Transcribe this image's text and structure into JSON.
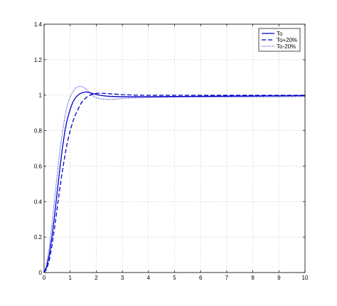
{
  "colors": {
    "series": "#0000cc",
    "grid": "#b0b0b0",
    "axis": "#000000",
    "background": "#ffffff"
  },
  "chart_data": {
    "type": "line",
    "title": "",
    "xlabel": "",
    "ylabel": "",
    "xlim": [
      0,
      10
    ],
    "ylim": [
      0,
      1.4
    ],
    "grid": true,
    "legend_position": "top-right",
    "x_ticks": [
      "0",
      "1",
      "2",
      "3",
      "4",
      "5",
      "6",
      "7",
      "8",
      "9",
      "10"
    ],
    "y_ticks": [
      "0",
      "0.2",
      "0.4",
      "0.6",
      "0.8",
      "1",
      "1.2",
      "1.4"
    ],
    "series": [
      {
        "name": "To",
        "style": "solid",
        "x": [
          0,
          0.1,
          0.2,
          0.3,
          0.4,
          0.5,
          0.6,
          0.7,
          0.8,
          0.9,
          1.0,
          1.1,
          1.2,
          1.3,
          1.4,
          1.5,
          1.6,
          1.7,
          1.8,
          1.9,
          2.0,
          2.2,
          2.5,
          3.0,
          3.5,
          4.0,
          5.0,
          6.0,
          7.0,
          8.0,
          9.0,
          10.0
        ],
        "y": [
          0,
          0.03,
          0.1,
          0.2,
          0.32,
          0.45,
          0.58,
          0.7,
          0.8,
          0.87,
          0.92,
          0.96,
          0.985,
          1.0,
          1.01,
          1.015,
          1.018,
          1.016,
          1.012,
          1.008,
          1.004,
          0.998,
          0.993,
          0.991,
          0.991,
          0.991,
          0.992,
          0.993,
          0.994,
          0.995,
          0.996,
          0.997
        ]
      },
      {
        "name": "To+20%",
        "style": "dashed",
        "x": [
          0,
          0.1,
          0.2,
          0.3,
          0.4,
          0.5,
          0.6,
          0.7,
          0.8,
          0.9,
          1.0,
          1.1,
          1.2,
          1.3,
          1.4,
          1.5,
          1.6,
          1.7,
          1.8,
          1.9,
          2.0,
          2.1,
          2.2,
          2.5,
          3.0,
          3.5,
          4.0,
          5.0,
          6.0,
          7.0,
          8.0,
          9.0,
          10.0
        ],
        "y": [
          0,
          0.02,
          0.07,
          0.15,
          0.25,
          0.36,
          0.47,
          0.57,
          0.66,
          0.74,
          0.8,
          0.85,
          0.89,
          0.92,
          0.95,
          0.97,
          0.985,
          0.995,
          1.002,
          1.007,
          1.01,
          1.011,
          1.011,
          1.008,
          1.003,
          1.0,
          0.999,
          0.999,
          0.999,
          0.999,
          0.999,
          0.999,
          0.999
        ]
      },
      {
        "name": "To-20%",
        "style": "dotted",
        "x": [
          0,
          0.1,
          0.2,
          0.3,
          0.4,
          0.5,
          0.6,
          0.7,
          0.8,
          0.9,
          1.0,
          1.1,
          1.2,
          1.3,
          1.4,
          1.5,
          1.6,
          1.7,
          1.8,
          1.9,
          2.0,
          2.2,
          2.5,
          2.8,
          3.0,
          3.5,
          4.0,
          5.0,
          6.0,
          7.0,
          8.0,
          9.0,
          10.0
        ],
        "y": [
          0,
          0.05,
          0.14,
          0.27,
          0.41,
          0.55,
          0.68,
          0.79,
          0.88,
          0.95,
          0.99,
          1.02,
          1.04,
          1.048,
          1.05,
          1.045,
          1.035,
          1.02,
          1.005,
          0.993,
          0.985,
          0.978,
          0.976,
          0.978,
          0.982,
          0.985,
          0.987,
          0.989,
          0.99,
          0.99,
          0.991,
          0.991,
          0.992
        ]
      }
    ]
  }
}
